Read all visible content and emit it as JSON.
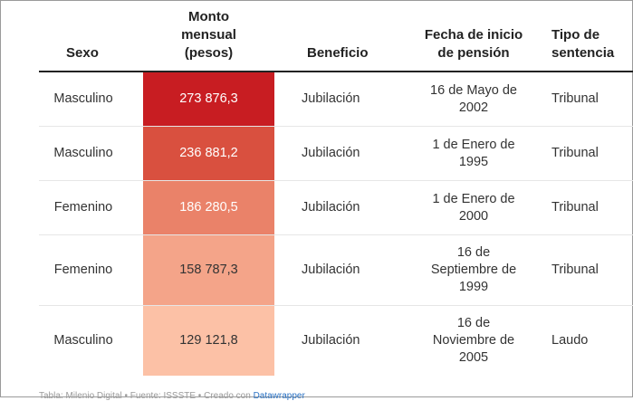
{
  "table": {
    "headers": {
      "sexo": "Sexo",
      "monto": "Monto\nmensual\n(pesos)",
      "beneficio": "Beneficio",
      "fecha": "Fecha de inicio\nde pensión",
      "tipo": "Tipo de\nsentencia"
    },
    "rows": [
      {
        "sexo": "Masculino",
        "monto": "273 876,3",
        "beneficio": "Jubilación",
        "fecha": "16 de Mayo de\n2002",
        "tipo": "Tribunal",
        "color": "#c81d22",
        "text_color": "#ffffff"
      },
      {
        "sexo": "Masculino",
        "monto": "236 881,2",
        "beneficio": "Jubilación",
        "fecha": "1 de Enero de\n1995",
        "tipo": "Tribunal",
        "color": "#d9503f",
        "text_color": "#ffffff"
      },
      {
        "sexo": "Femenino",
        "monto": "186 280,5",
        "beneficio": "Jubilación",
        "fecha": "1 de Enero de\n2000",
        "tipo": "Tribunal",
        "color": "#ea8269",
        "text_color": "#ffffff"
      },
      {
        "sexo": "Femenino",
        "monto": "158 787,3",
        "beneficio": "Jubilación",
        "fecha": "16 de\nSeptiembre de\n1999",
        "tipo": "Tribunal",
        "color": "#f4a489",
        "text_color": "#333333"
      },
      {
        "sexo": "Masculino",
        "monto": "129 121,8",
        "beneficio": "Jubilación",
        "fecha": "16 de\nNoviembre de\n2005",
        "tipo": "Laudo",
        "color": "#fcc1a6",
        "text_color": "#333333"
      }
    ]
  },
  "footer": {
    "text": "Tabla: Milenio Digital • Fuente: ISSSTE • Creado con ",
    "link": "Datawrapper"
  }
}
